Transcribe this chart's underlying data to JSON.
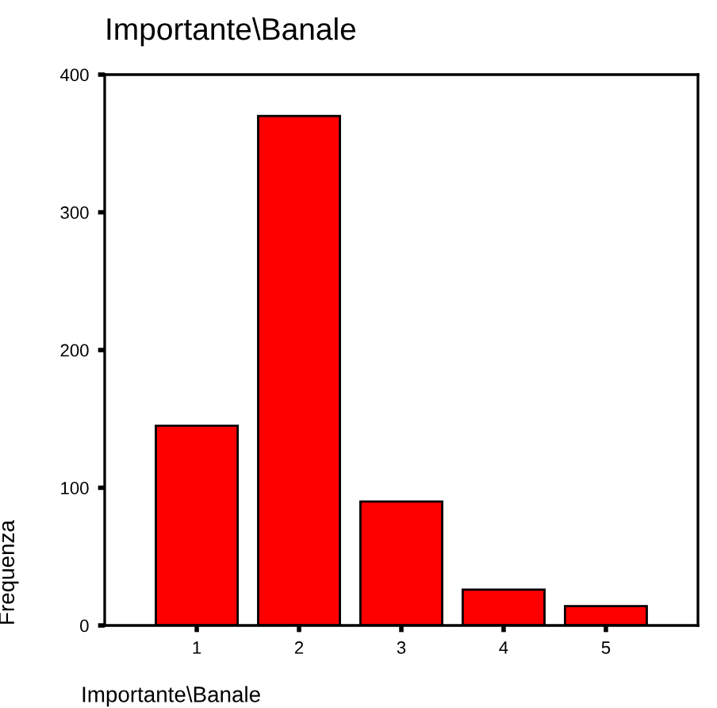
{
  "chart_data": {
    "type": "bar",
    "title": "Importante\\Banale",
    "xlabel": "Importante\\Banale",
    "ylabel": "Frequenza",
    "categories": [
      "1",
      "2",
      "3",
      "4",
      "5"
    ],
    "values": [
      145,
      370,
      90,
      26,
      14
    ],
    "color": "#ff0000",
    "ylim": [
      0,
      400
    ],
    "yticks": [
      0,
      100,
      200,
      300,
      400
    ],
    "grid": false
  }
}
